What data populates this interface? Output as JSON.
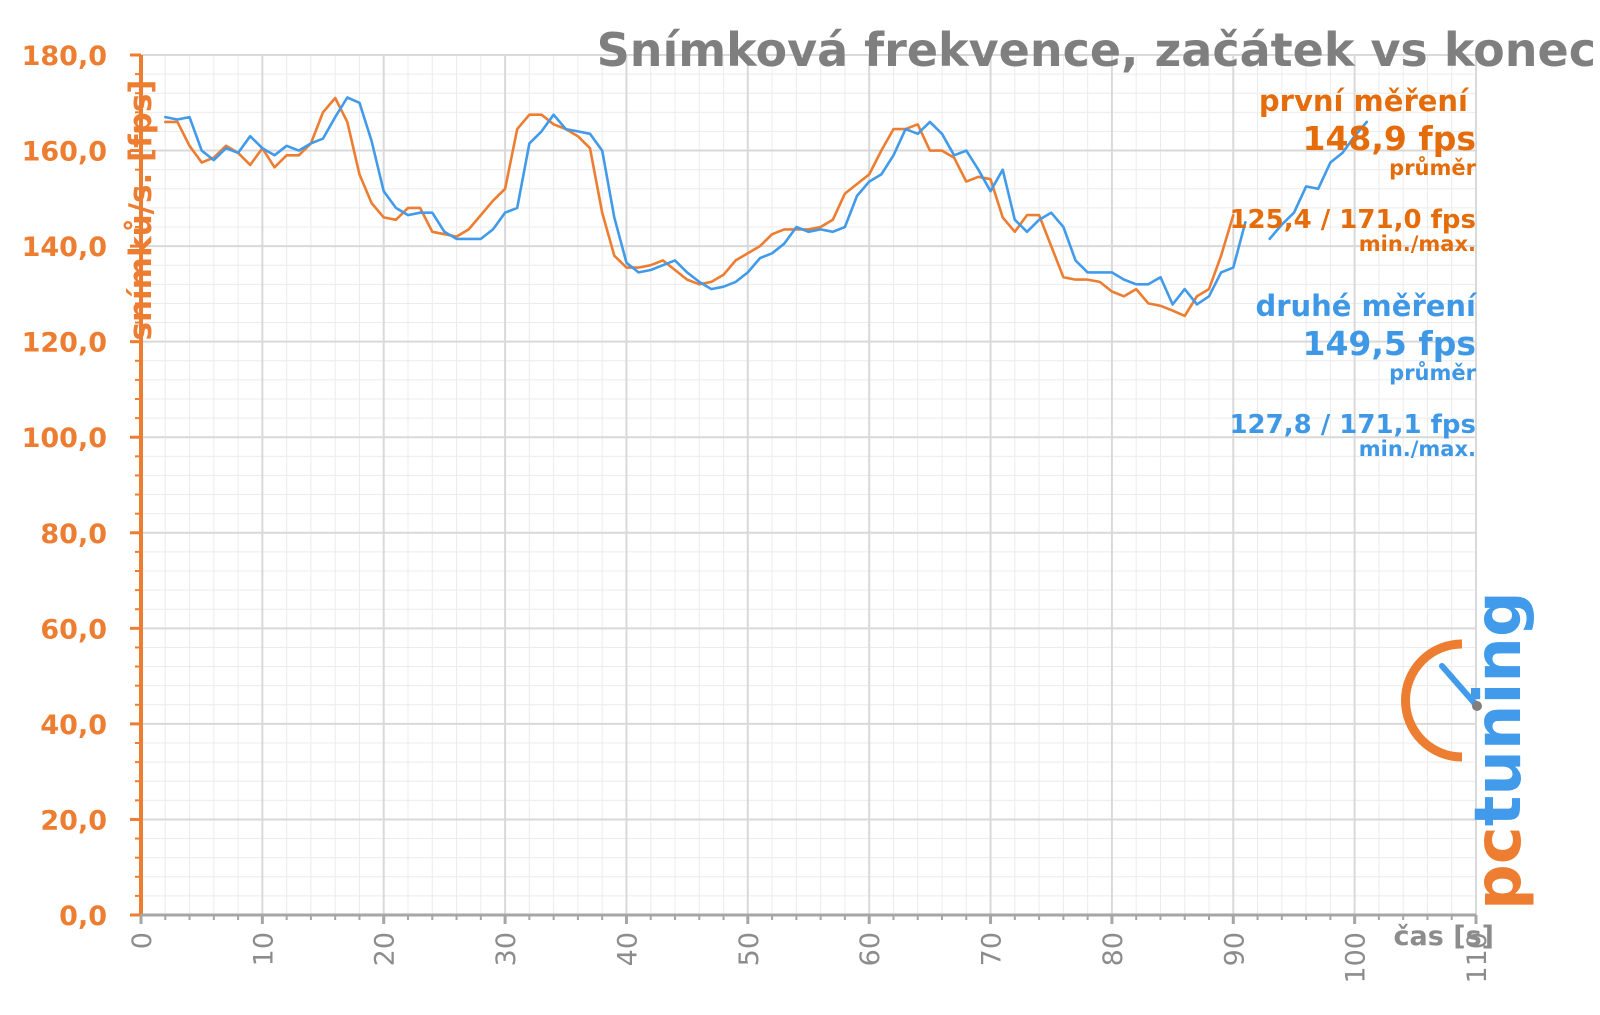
{
  "chart_data": {
    "type": "line",
    "title": "Snímková frekvence, začátek vs konec",
    "xlabel": "čas [s]",
    "ylabel": "snímků/s. [fps]",
    "xlim": [
      0,
      110
    ],
    "ylim": [
      0,
      180
    ],
    "xticks": [
      "0",
      "10",
      "20",
      "30",
      "40",
      "50",
      "60",
      "70",
      "80",
      "90",
      "100",
      "110"
    ],
    "yticks": [
      "0,0",
      "20,0",
      "40,0",
      "60,0",
      "80,0",
      "100,0",
      "120,0",
      "140,0",
      "160,0",
      "180,0"
    ],
    "grid": true,
    "x_start": 2,
    "series": [
      {
        "name": "první měření",
        "color": "#ed7d31",
        "values": [
          166,
          166,
          161,
          157.5,
          158.5,
          161,
          159.5,
          157,
          160.5,
          156.5,
          159,
          159,
          161.5,
          168,
          171,
          166,
          155,
          149,
          146,
          145.5,
          148,
          148,
          143,
          142.5,
          142,
          143.5,
          146.5,
          149.5,
          152,
          164.5,
          167.5,
          167.5,
          165.5,
          164.5,
          163,
          160.5,
          147,
          138,
          135.5,
          135.5,
          136,
          137,
          135,
          133,
          132,
          132.5,
          134,
          137,
          138.5,
          140,
          142.5,
          143.5,
          143.5,
          143.5,
          144,
          145.5,
          151,
          153,
          155,
          160,
          164.5,
          164.5,
          165.5,
          160,
          160,
          158.5,
          153.5,
          154.5,
          154,
          146,
          143,
          146.5,
          146.5,
          140,
          133.5,
          133,
          133,
          132.5,
          130.5,
          129.5,
          131,
          128,
          127.5,
          126.5,
          125.4,
          129.5,
          131,
          138,
          146.5,
          null,
          null,
          null,
          null,
          null,
          null,
          null,
          null,
          null,
          null,
          null,
          null
        ]
      },
      {
        "name": "druhé měření",
        "color": "#419bea",
        "values": [
          167,
          166.5,
          167,
          160,
          158,
          160.5,
          159.5,
          163,
          160.5,
          159,
          161,
          160,
          161.5,
          162.5,
          167,
          171.1,
          170,
          162,
          151.5,
          148,
          146.5,
          147,
          147,
          143,
          141.5,
          141.5,
          141.5,
          143.5,
          147,
          148,
          161.5,
          164,
          167.5,
          164.5,
          164,
          163.5,
          160,
          146,
          136.5,
          134.5,
          135,
          136,
          137,
          134.5,
          132.5,
          131,
          131.5,
          132.5,
          134.5,
          137.5,
          138.5,
          140.5,
          144,
          143,
          143.5,
          143,
          144,
          150.5,
          153.5,
          155,
          159,
          164.5,
          163.5,
          166,
          163.5,
          159,
          160,
          156,
          151.5,
          156,
          145.5,
          143,
          145.5,
          147,
          144,
          137,
          134.5,
          134.5,
          134.5,
          133,
          132,
          132,
          133.5,
          127.8,
          131,
          127.8,
          129.5,
          134.5,
          135.5,
          145,
          null,
          141.5,
          144.5,
          147,
          152.5,
          152,
          157.5,
          159.5,
          163,
          166
        ]
      }
    ],
    "legend": {
      "placement": "right",
      "entries": [
        {
          "name": "první měření",
          "avg": "148,9 fps",
          "avg_label": "průměr",
          "minmax": "125,4 / 171,0 fps",
          "minmax_label": "min./max.",
          "color": "#e46c0a"
        },
        {
          "name": "druhé měření",
          "avg": "149,5 fps",
          "avg_label": "průměr",
          "minmax": "127,8 / 171,1 fps",
          "minmax_label": "min./max.",
          "color": "#3e98e6"
        }
      ]
    },
    "logo": "pctuning"
  }
}
